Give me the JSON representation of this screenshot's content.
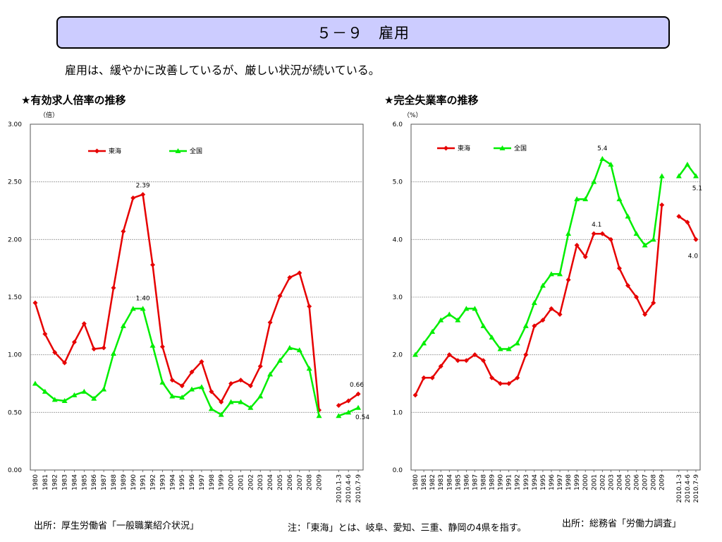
{
  "header": {
    "title": "５－９　雇用"
  },
  "subtitle": "雇用は、緩やかに改善しているが、厳しい状況が続いている。",
  "footer": {
    "source_left": "出所：厚生労働省「一般職業紹介状況」",
    "note": "注：「東海」とは、岐阜、愛知、三重、静岡の4県を指す。",
    "source_right": "出所：総務省「労働力調査」"
  },
  "colors": {
    "tokai": "#e60000",
    "zenkoku": "#00ee00",
    "header_bg": "#ccccff"
  },
  "chart_data": [
    {
      "type": "line",
      "title": "★有効求人倍率の推移",
      "unit": "（倍）",
      "categories": [
        "1980",
        "1981",
        "1982",
        "1983",
        "1984",
        "1985",
        "1986",
        "1987",
        "1988",
        "1989",
        "1990",
        "1991",
        "1992",
        "1993",
        "1994",
        "1995",
        "1996",
        "1997",
        "1998",
        "1999",
        "2000",
        "2001",
        "2002",
        "2003",
        "2004",
        "2005",
        "2006",
        "2007",
        "2008",
        "2009",
        "",
        "2010.1-3",
        "2010.4-6",
        "2010.7-9"
      ],
      "ylim": [
        0,
        3.0
      ],
      "yticks": [
        "0.00",
        "0.50",
        "1.00",
        "1.50",
        "2.00",
        "2.50",
        "3.00"
      ],
      "grid": true,
      "legend": "top-left",
      "series": [
        {
          "name": "東海",
          "color": "#e60000",
          "marker": "diamond",
          "values": [
            1.45,
            1.18,
            1.02,
            0.93,
            1.11,
            1.27,
            1.05,
            1.06,
            1.58,
            2.07,
            2.36,
            2.39,
            1.78,
            1.07,
            0.78,
            0.73,
            0.85,
            0.94,
            0.68,
            0.59,
            0.75,
            0.78,
            0.73,
            0.9,
            1.28,
            1.51,
            1.67,
            1.71,
            1.42,
            0.52,
            null,
            0.56,
            0.6,
            0.66
          ]
        },
        {
          "name": "全国",
          "color": "#00ee00",
          "marker": "triangle",
          "values": [
            0.75,
            0.68,
            0.61,
            0.6,
            0.65,
            0.68,
            0.62,
            0.7,
            1.01,
            1.25,
            1.4,
            1.4,
            1.08,
            0.76,
            0.64,
            0.63,
            0.7,
            0.72,
            0.53,
            0.48,
            0.59,
            0.59,
            0.54,
            0.64,
            0.83,
            0.95,
            1.06,
            1.04,
            0.88,
            0.47,
            null,
            0.47,
            0.5,
            0.54
          ]
        }
      ],
      "annotations": [
        "2.39",
        "1.40",
        "0.66",
        "0.54"
      ]
    },
    {
      "type": "line",
      "title": "★完全失業率の推移",
      "unit": "（%）",
      "categories": [
        "1980",
        "1981",
        "1982",
        "1983",
        "1984",
        "1985",
        "1986",
        "1987",
        "1988",
        "1989",
        "1990",
        "1991",
        "1992",
        "1993",
        "1994",
        "1995",
        "1996",
        "1997",
        "1998",
        "1999",
        "2000",
        "2001",
        "2002",
        "2003",
        "2004",
        "2005",
        "2006",
        "2007",
        "2008",
        "2009",
        "",
        "2010.1-3",
        "2010.4-6",
        "2010.7-9"
      ],
      "ylim": [
        0,
        6.0
      ],
      "yticks": [
        "0.0",
        "1.0",
        "2.0",
        "3.0",
        "4.0",
        "5.0",
        "6.0"
      ],
      "grid": true,
      "legend": "top-left",
      "series": [
        {
          "name": "東海",
          "color": "#e60000",
          "marker": "diamond",
          "values": [
            1.3,
            1.6,
            1.6,
            1.8,
            2.0,
            1.9,
            1.9,
            2.0,
            1.9,
            1.6,
            1.5,
            1.5,
            1.6,
            2.0,
            2.5,
            2.6,
            2.8,
            2.7,
            3.3,
            3.9,
            3.7,
            4.1,
            4.1,
            4.0,
            3.5,
            3.2,
            3.0,
            2.7,
            2.9,
            4.6,
            null,
            4.4,
            4.3,
            4.0
          ]
        },
        {
          "name": "全国",
          "color": "#00ee00",
          "marker": "triangle",
          "values": [
            2.0,
            2.2,
            2.4,
            2.6,
            2.7,
            2.6,
            2.8,
            2.8,
            2.5,
            2.3,
            2.1,
            2.1,
            2.2,
            2.5,
            2.9,
            3.2,
            3.4,
            3.4,
            4.1,
            4.7,
            4.7,
            5.0,
            5.4,
            5.3,
            4.7,
            4.4,
            4.1,
            3.9,
            4.0,
            5.1,
            null,
            5.1,
            5.3,
            5.1
          ]
        }
      ],
      "annotations": [
        "5.4",
        "4.1",
        "5.1",
        "4.0"
      ]
    }
  ]
}
